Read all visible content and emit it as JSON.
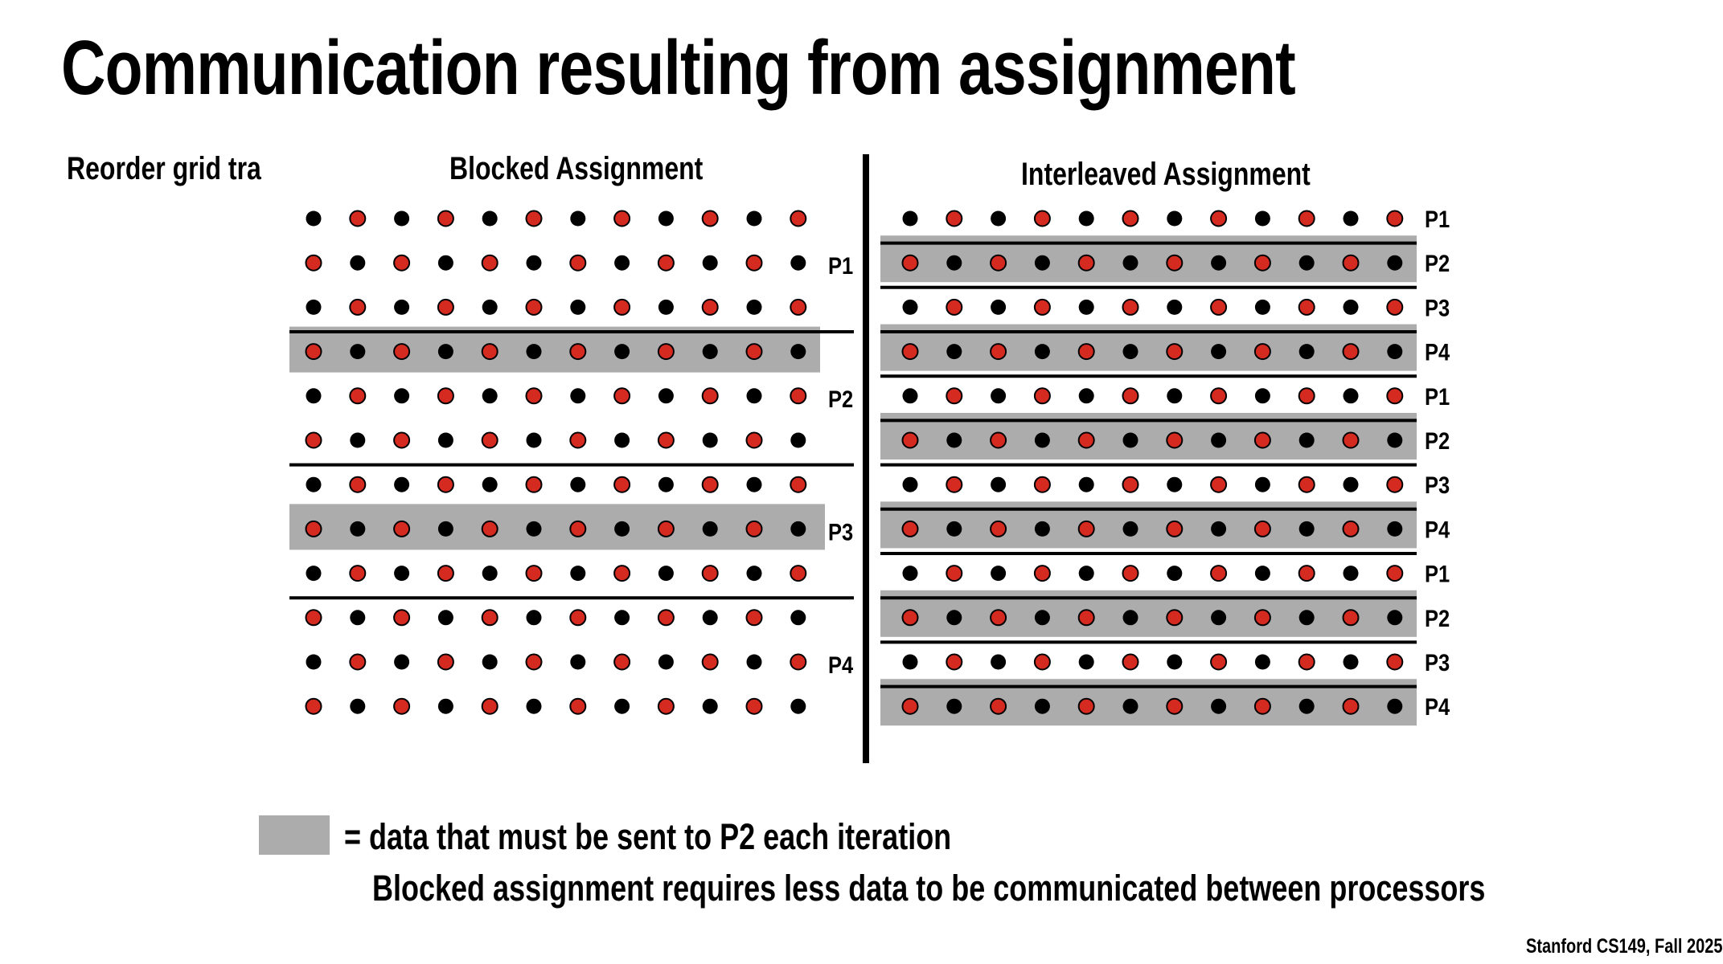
{
  "title": "Communication resulting from assignment",
  "side_note": "Reorder grid tra",
  "blocked": {
    "heading": "Blocked Assignment",
    "rows": 12,
    "cols": 12,
    "processor_labels": [
      "P1",
      "P2",
      "P3",
      "P4"
    ],
    "highlighted_rows": [
      3,
      7
    ]
  },
  "interleaved": {
    "heading": "Interleaved Assignment",
    "rows": 12,
    "cols": 12,
    "processor_labels": [
      "P1",
      "P2",
      "P3",
      "P4",
      "P1",
      "P2",
      "P3",
      "P4",
      "P1",
      "P2",
      "P3",
      "P4"
    ],
    "highlighted_rows": [
      1,
      3,
      5,
      7,
      9,
      11
    ]
  },
  "legend": {
    "text": "= data that must be sent to P2 each iteration",
    "swatch_color": "#acacac"
  },
  "conclusion": "Blocked assignment requires less data to be communicated between processors",
  "footer": "Stanford CS149, Fall 2025",
  "colors": {
    "red_dot": "#d42a20",
    "black_dot": "#000000",
    "highlight": "#acacac"
  }
}
